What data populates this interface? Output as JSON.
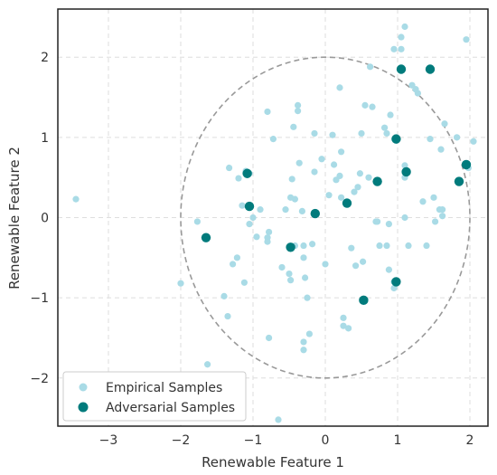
{
  "chart_data": {
    "type": "scatter",
    "title": "",
    "xlabel": "Renewable Feature 1",
    "ylabel": "Renewable Feature 2",
    "xlim": [
      -3.7,
      2.25
    ],
    "ylim": [
      -2.6,
      2.6
    ],
    "xticks": [
      -3,
      -2,
      -1,
      0,
      1,
      2
    ],
    "yticks": [
      -2,
      -1,
      0,
      1,
      2
    ],
    "xtick_labels": [
      "−3",
      "−2",
      "−1",
      "0",
      "1",
      "2"
    ],
    "ytick_labels": [
      "−2",
      "−1",
      "0",
      "1",
      "2"
    ],
    "grid": true,
    "legend_position": "lower-left",
    "ellipse": {
      "center": [
        0,
        0
      ],
      "radius_x": 2,
      "radius_y": 2,
      "style": "dashed",
      "color": "#999999"
    },
    "series": [
      {
        "name": "Empirical Samples",
        "color": "#a9dbe6",
        "points": [
          [
            -3.45,
            0.23
          ],
          [
            -2.0,
            -0.82
          ],
          [
            -1.77,
            -0.05
          ],
          [
            -1.63,
            -1.83
          ],
          [
            -1.4,
            -0.98
          ],
          [
            -1.35,
            -1.23
          ],
          [
            -1.33,
            0.62
          ],
          [
            -1.28,
            -0.58
          ],
          [
            -1.22,
            -0.5
          ],
          [
            -1.2,
            0.49
          ],
          [
            -1.15,
            0.15
          ],
          [
            -1.12,
            -0.81
          ],
          [
            -1.1,
            0.58
          ],
          [
            -1.05,
            -0.08
          ],
          [
            -1.0,
            0.0
          ],
          [
            -0.95,
            -0.24
          ],
          [
            -0.9,
            0.1
          ],
          [
            -0.8,
            -0.25
          ],
          [
            -0.8,
            -0.3
          ],
          [
            -0.78,
            -0.18
          ],
          [
            -0.78,
            -1.5
          ],
          [
            -0.8,
            1.32
          ],
          [
            -0.72,
            0.98
          ],
          [
            -0.6,
            -0.62
          ],
          [
            -0.55,
            0.1
          ],
          [
            -0.5,
            -0.7
          ],
          [
            -0.48,
            -0.78
          ],
          [
            -0.48,
            0.25
          ],
          [
            -0.46,
            0.48
          ],
          [
            -0.44,
            1.13
          ],
          [
            -0.42,
            0.23
          ],
          [
            -0.42,
            -0.35
          ],
          [
            -0.38,
            1.33
          ],
          [
            -0.38,
            1.4
          ],
          [
            -0.36,
            0.68
          ],
          [
            -0.32,
            0.08
          ],
          [
            -0.3,
            -0.35
          ],
          [
            -0.3,
            -0.5
          ],
          [
            -0.3,
            -1.55
          ],
          [
            -0.3,
            -1.65
          ],
          [
            -0.28,
            -0.75
          ],
          [
            -0.25,
            -1.0
          ],
          [
            -0.22,
            -1.45
          ],
          [
            -0.18,
            -0.33
          ],
          [
            -0.15,
            1.05
          ],
          [
            -0.15,
            0.57
          ],
          [
            -0.05,
            0.73
          ],
          [
            0.0,
            -0.58
          ],
          [
            0.05,
            0.28
          ],
          [
            0.1,
            1.03
          ],
          [
            0.12,
            0.66
          ],
          [
            0.15,
            0.47
          ],
          [
            0.2,
            1.62
          ],
          [
            0.2,
            0.52
          ],
          [
            0.22,
            0.25
          ],
          [
            0.22,
            0.82
          ],
          [
            0.25,
            -1.35
          ],
          [
            0.25,
            -1.25
          ],
          [
            0.3,
            0.2
          ],
          [
            0.32,
            -1.38
          ],
          [
            0.36,
            -0.38
          ],
          [
            0.4,
            0.32
          ],
          [
            0.42,
            -0.6
          ],
          [
            0.45,
            0.38
          ],
          [
            0.48,
            0.55
          ],
          [
            0.5,
            1.05
          ],
          [
            0.52,
            -0.55
          ],
          [
            0.55,
            1.4
          ],
          [
            0.6,
            0.5
          ],
          [
            0.62,
            1.88
          ],
          [
            0.65,
            1.38
          ],
          [
            0.7,
            -0.05
          ],
          [
            0.72,
            -0.05
          ],
          [
            0.75,
            -0.35
          ],
          [
            0.82,
            1.12
          ],
          [
            0.85,
            1.05
          ],
          [
            0.85,
            -0.35
          ],
          [
            0.88,
            -0.08
          ],
          [
            0.88,
            -0.65
          ],
          [
            0.9,
            1.28
          ],
          [
            0.95,
            -0.8
          ],
          [
            0.95,
            -0.88
          ],
          [
            1.05,
            2.1
          ],
          [
            1.05,
            2.25
          ],
          [
            1.1,
            2.38
          ],
          [
            1.1,
            0.5
          ],
          [
            1.1,
            0.65
          ],
          [
            1.1,
            0.0
          ],
          [
            1.15,
            -0.35
          ],
          [
            1.2,
            1.65
          ],
          [
            1.25,
            1.6
          ],
          [
            1.28,
            1.55
          ],
          [
            1.35,
            0.2
          ],
          [
            1.4,
            -0.35
          ],
          [
            1.45,
            0.98
          ],
          [
            1.5,
            0.25
          ],
          [
            1.52,
            -0.05
          ],
          [
            1.58,
            0.1
          ],
          [
            1.6,
            0.85
          ],
          [
            1.62,
            0.02
          ],
          [
            1.62,
            0.1
          ],
          [
            1.65,
            1.17
          ],
          [
            1.82,
            1.0
          ],
          [
            1.95,
            2.22
          ],
          [
            2.05,
            0.95
          ],
          [
            1.98,
            0.62
          ],
          [
            -0.65,
            -2.52
          ],
          [
            -1.05,
            0.55
          ],
          [
            0.95,
            2.1
          ]
        ]
      },
      {
        "name": "Adversarial Samples",
        "color": "#017b7c",
        "points": [
          [
            -1.65,
            -0.25
          ],
          [
            -1.08,
            0.55
          ],
          [
            -1.05,
            0.14
          ],
          [
            -0.48,
            -0.37
          ],
          [
            -0.14,
            0.05
          ],
          [
            0.3,
            0.18
          ],
          [
            0.53,
            -1.03
          ],
          [
            0.72,
            0.45
          ],
          [
            0.98,
            0.98
          ],
          [
            0.98,
            -0.8
          ],
          [
            1.05,
            1.85
          ],
          [
            1.12,
            0.57
          ],
          [
            1.45,
            1.85
          ],
          [
            1.85,
            0.45
          ],
          [
            1.95,
            0.66
          ]
        ]
      }
    ]
  }
}
